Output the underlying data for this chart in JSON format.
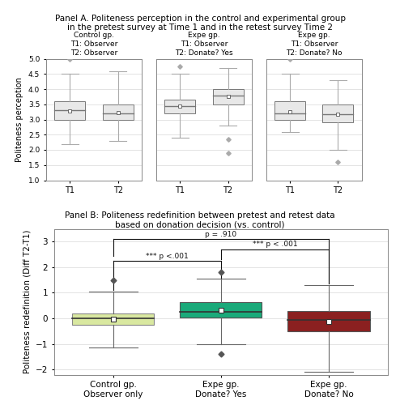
{
  "panel_a_title": "Panel A. Politeness perception in the control and experimental group\nin the pretest survey at Time 1 and in the retest survey Time 2",
  "panel_b_title": "Panel B: Politeness redefinition between pretest and retest data\nbased on donation decision (vs. control)",
  "panel_a_subtitle1": "Control gp.\nT1: Observer\nT2: Observer",
  "panel_a_subtitle2": "Expe gp.\nT1: Observer\nT2: Donate? Yes",
  "panel_a_subtitle3": "Expe gp.\nT1: Observer\nT2: Donate? No",
  "panel_a_ylabel": "Politeness perception",
  "panel_b_ylabel": "Politeness redefinition (Diff T2-T1)",
  "panel_a_ylim": [
    1.0,
    5.0
  ],
  "panel_a_yticks": [
    1.0,
    1.5,
    2.0,
    2.5,
    3.0,
    3.5,
    4.0,
    4.5,
    5.0
  ],
  "panel_b_ylim": [
    -2.2,
    3.5
  ],
  "panel_b_yticks": [
    -2,
    -1,
    0,
    1,
    2,
    3
  ],
  "groups_a": {
    "control": {
      "T1": {
        "q1": 3.0,
        "median": 3.3,
        "q3": 3.6,
        "whisker_low": 2.2,
        "whisker_high": 4.5,
        "mean": 3.28,
        "outliers": [
          5.0
        ]
      },
      "T2": {
        "q1": 3.0,
        "median": 3.2,
        "q3": 3.5,
        "whisker_low": 2.3,
        "whisker_high": 4.6,
        "mean": 3.22,
        "outliers": []
      }
    },
    "expe_yes": {
      "T1": {
        "q1": 3.2,
        "median": 3.45,
        "q3": 3.65,
        "whisker_low": 2.4,
        "whisker_high": 4.5,
        "mean": 3.43,
        "outliers": [
          4.75
        ]
      },
      "T2": {
        "q1": 3.5,
        "median": 3.8,
        "q3": 4.0,
        "whisker_low": 2.8,
        "whisker_high": 4.7,
        "mean": 3.77,
        "outliers": [
          2.35,
          1.9
        ]
      }
    },
    "expe_no": {
      "T1": {
        "q1": 3.0,
        "median": 3.2,
        "q3": 3.6,
        "whisker_low": 2.6,
        "whisker_high": 4.5,
        "mean": 3.25,
        "outliers": [
          5.0
        ]
      },
      "T2": {
        "q1": 2.9,
        "median": 3.18,
        "q3": 3.5,
        "whisker_low": 2.0,
        "whisker_high": 4.3,
        "mean": 3.18,
        "outliers": [
          1.6
        ]
      }
    }
  },
  "groups_b": {
    "control": {
      "color": "#d9e8a0",
      "edgecolor": "#888888",
      "q1": -0.25,
      "median": 0.0,
      "q3": 0.2,
      "whisker_low": -1.15,
      "whisker_high": 1.05,
      "mean": -0.03,
      "outliers": [
        1.5
      ]
    },
    "expe_yes": {
      "color": "#1aaa7a",
      "edgecolor": "#555555",
      "q1": 0.02,
      "median": 0.25,
      "q3": 0.65,
      "whisker_low": -1.0,
      "whisker_high": 1.55,
      "mean": 0.32,
      "outliers": [
        -1.4,
        1.8
      ]
    },
    "expe_no": {
      "color": "#8b2020",
      "edgecolor": "#555555",
      "q1": -0.5,
      "median": -0.05,
      "q3": 0.3,
      "whisker_low": -2.1,
      "whisker_high": 1.3,
      "mean": -0.12,
      "outliers": []
    }
  },
  "panel_b_xtick_labels": [
    "Control gp.\nObserver only",
    "Expe gp.\nDonate? Yes",
    "Expe gp.\nDonate? No"
  ],
  "box_color_a": "#e8e8e8",
  "bracket_color": "#111111",
  "stat_label1": "*** p <.001",
  "stat_label2": "p = .910",
  "stat_label3": "*** p < .001"
}
